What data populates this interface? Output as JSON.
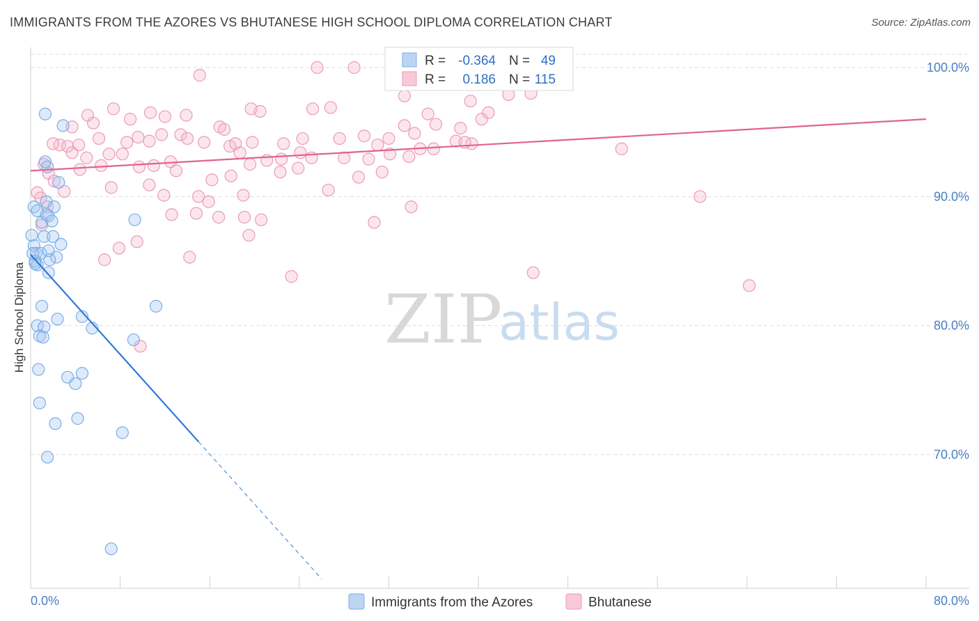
{
  "header": {
    "title": "IMMIGRANTS FROM THE AZORES VS BHUTANESE HIGH SCHOOL DIPLOMA CORRELATION CHART",
    "source": "Source: ZipAtlas.com"
  },
  "watermark": {
    "zip": "ZIP",
    "atlas": "atlas"
  },
  "colors": {
    "blue": "#7aaee6",
    "blue_fill": "rgba(160,196,240,0.35)",
    "blue_line": "#2f78d6",
    "pink": "#eb9ab5",
    "pink_fill": "rgba(245,182,204,0.35)",
    "pink_line": "#e0638f",
    "grid": "#dddddd",
    "tick_text": "#4a7fc1"
  },
  "legend": {
    "row1": {
      "r_label": "R =",
      "r_value": "-0.364",
      "n_label": "N =",
      "n_value": "49"
    },
    "row2": {
      "r_label": "R =",
      "r_value": "0.186",
      "n_label": "N =",
      "n_value": "115"
    }
  },
  "bottom_legend": {
    "series1": "Immigrants from the Azores",
    "series2": "Bhutanese"
  },
  "chart_data": {
    "type": "scatter",
    "title": "IMMIGRANTS FROM THE AZORES VS BHUTANESE HIGH SCHOOL DIPLOMA CORRELATION CHART",
    "xlabel": "",
    "ylabel": "High School Diploma",
    "xlim": [
      0,
      80
    ],
    "ylim": [
      62,
      103
    ],
    "x_tick_labels": [
      "0.0%",
      "80.0%"
    ],
    "y_ticks": [
      {
        "value": 100,
        "label": "100.0%"
      },
      {
        "value": 90,
        "label": "90.0%"
      },
      {
        "value": 80,
        "label": "80.0%"
      },
      {
        "value": 70,
        "label": "70.0%"
      }
    ],
    "grid": true,
    "series": [
      {
        "name": "Immigrants from the Azores",
        "color": "blue",
        "R": -0.364,
        "N": 49,
        "trend": {
          "x0": 0,
          "y0": 85.5,
          "x1": 15,
          "y1": 71.0,
          "dash_to_x": 26
        },
        "points": [
          [
            1.3,
            96.4
          ],
          [
            2.9,
            95.5
          ],
          [
            1.3,
            92.7
          ],
          [
            1.5,
            92.3
          ],
          [
            2.5,
            91.1
          ],
          [
            0.3,
            89.2
          ],
          [
            0.6,
            88.9
          ],
          [
            1.4,
            89.6
          ],
          [
            2.1,
            89.2
          ],
          [
            1.6,
            88.5
          ],
          [
            1.0,
            88.0
          ],
          [
            1.2,
            86.9
          ],
          [
            2.0,
            86.9
          ],
          [
            2.7,
            86.3
          ],
          [
            0.3,
            86.2
          ],
          [
            0.5,
            85.6
          ],
          [
            0.9,
            85.6
          ],
          [
            1.6,
            85.8
          ],
          [
            2.3,
            85.3
          ],
          [
            0.4,
            85.0
          ],
          [
            0.6,
            84.7
          ],
          [
            1.7,
            85.1
          ],
          [
            1.6,
            84.1
          ],
          [
            9.3,
            88.2
          ],
          [
            1.0,
            81.5
          ],
          [
            2.4,
            80.5
          ],
          [
            4.6,
            80.7
          ],
          [
            0.6,
            80.0
          ],
          [
            1.2,
            79.9
          ],
          [
            5.5,
            79.8
          ],
          [
            0.8,
            79.2
          ],
          [
            1.1,
            79.1
          ],
          [
            9.2,
            78.9
          ],
          [
            11.2,
            81.5
          ],
          [
            0.7,
            76.6
          ],
          [
            3.3,
            76.0
          ],
          [
            4.0,
            75.5
          ],
          [
            4.6,
            76.3
          ],
          [
            0.8,
            74.0
          ],
          [
            2.2,
            72.4
          ],
          [
            4.2,
            72.8
          ],
          [
            8.2,
            71.7
          ],
          [
            1.5,
            69.8
          ],
          [
            7.2,
            62.7
          ],
          [
            0.1,
            87.0
          ],
          [
            1.4,
            88.6
          ],
          [
            0.4,
            84.8
          ],
          [
            1.9,
            88.1
          ],
          [
            0.2,
            85.6
          ]
        ]
      },
      {
        "name": "Bhutanese",
        "color": "pink",
        "R": 0.186,
        "N": 115,
        "trend": {
          "x0": 0,
          "y0": 92.0,
          "x1": 80,
          "y1": 96.0
        },
        "points": [
          [
            15.1,
            99.4
          ],
          [
            25.6,
            100.0
          ],
          [
            28.9,
            100.0
          ],
          [
            43.1,
            100.0
          ],
          [
            44.3,
            100.0
          ],
          [
            33.4,
            97.8
          ],
          [
            42.7,
            97.9
          ],
          [
            39.3,
            97.4
          ],
          [
            7.4,
            96.8
          ],
          [
            10.7,
            96.5
          ],
          [
            12.0,
            96.2
          ],
          [
            13.9,
            96.3
          ],
          [
            19.7,
            96.8
          ],
          [
            25.2,
            96.8
          ],
          [
            5.1,
            96.3
          ],
          [
            8.9,
            96.0
          ],
          [
            3.7,
            95.4
          ],
          [
            5.6,
            95.7
          ],
          [
            16.9,
            95.4
          ],
          [
            33.4,
            95.5
          ],
          [
            36.2,
            95.6
          ],
          [
            38.4,
            95.3
          ],
          [
            40.3,
            96.0
          ],
          [
            40.9,
            96.5
          ],
          [
            35.5,
            96.4
          ],
          [
            17.3,
            95.2
          ],
          [
            2.6,
            94.0
          ],
          [
            3.3,
            93.9
          ],
          [
            4.3,
            94.0
          ],
          [
            6.1,
            94.5
          ],
          [
            8.6,
            94.2
          ],
          [
            9.6,
            94.6
          ],
          [
            10.6,
            94.3
          ],
          [
            11.7,
            94.8
          ],
          [
            13.4,
            94.8
          ],
          [
            15.5,
            94.2
          ],
          [
            17.8,
            93.9
          ],
          [
            18.3,
            94.1
          ],
          [
            19.8,
            94.2
          ],
          [
            22.6,
            94.1
          ],
          [
            24.3,
            94.5
          ],
          [
            27.6,
            94.5
          ],
          [
            29.8,
            94.7
          ],
          [
            31.0,
            94.0
          ],
          [
            32.0,
            94.5
          ],
          [
            34.3,
            94.9
          ],
          [
            38.0,
            94.3
          ],
          [
            39.4,
            94.1
          ],
          [
            3.7,
            93.4
          ],
          [
            7.0,
            93.3
          ],
          [
            8.2,
            93.3
          ],
          [
            12.5,
            92.7
          ],
          [
            18.7,
            93.4
          ],
          [
            21.1,
            92.8
          ],
          [
            22.4,
            92.9
          ],
          [
            24.1,
            93.4
          ],
          [
            28.0,
            93.0
          ],
          [
            32.1,
            93.3
          ],
          [
            33.8,
            93.1
          ],
          [
            34.8,
            93.7
          ],
          [
            6.3,
            92.4
          ],
          [
            9.7,
            92.3
          ],
          [
            13.0,
            92.0
          ],
          [
            19.6,
            92.5
          ],
          [
            23.9,
            92.2
          ],
          [
            4.4,
            92.1
          ],
          [
            1.6,
            91.8
          ],
          [
            2.1,
            91.2
          ],
          [
            16.2,
            91.3
          ],
          [
            29.3,
            91.5
          ],
          [
            31.4,
            91.9
          ],
          [
            22.3,
            91.9
          ],
          [
            7.2,
            90.7
          ],
          [
            10.6,
            90.9
          ],
          [
            11.9,
            90.1
          ],
          [
            15.0,
            90.0
          ],
          [
            15.9,
            89.6
          ],
          [
            19.0,
            90.1
          ],
          [
            26.6,
            90.5
          ],
          [
            59.8,
            90.0
          ],
          [
            0.6,
            90.3
          ],
          [
            0.9,
            89.9
          ],
          [
            1.5,
            89.2
          ],
          [
            12.6,
            88.6
          ],
          [
            14.8,
            88.7
          ],
          [
            16.8,
            88.4
          ],
          [
            19.1,
            88.4
          ],
          [
            20.6,
            88.2
          ],
          [
            30.7,
            88.0
          ],
          [
            34.0,
            89.2
          ],
          [
            1.0,
            87.8
          ],
          [
            19.5,
            87.0
          ],
          [
            9.5,
            86.5
          ],
          [
            7.9,
            86.0
          ],
          [
            14.2,
            85.3
          ],
          [
            6.6,
            85.1
          ],
          [
            23.3,
            83.8
          ],
          [
            44.9,
            84.1
          ],
          [
            64.2,
            83.1
          ],
          [
            9.8,
            78.4
          ],
          [
            52.8,
            93.7
          ],
          [
            44.7,
            98.0
          ],
          [
            38.8,
            94.2
          ],
          [
            26.8,
            96.9
          ],
          [
            20.5,
            96.6
          ],
          [
            14.0,
            94.5
          ],
          [
            11.0,
            92.4
          ],
          [
            5.0,
            93.0
          ],
          [
            2.0,
            94.1
          ],
          [
            1.2,
            92.5
          ],
          [
            36.0,
            93.7
          ],
          [
            30.2,
            92.9
          ],
          [
            17.9,
            91.6
          ],
          [
            25.1,
            93.0
          ],
          [
            3.0,
            90.4
          ]
        ]
      }
    ]
  }
}
